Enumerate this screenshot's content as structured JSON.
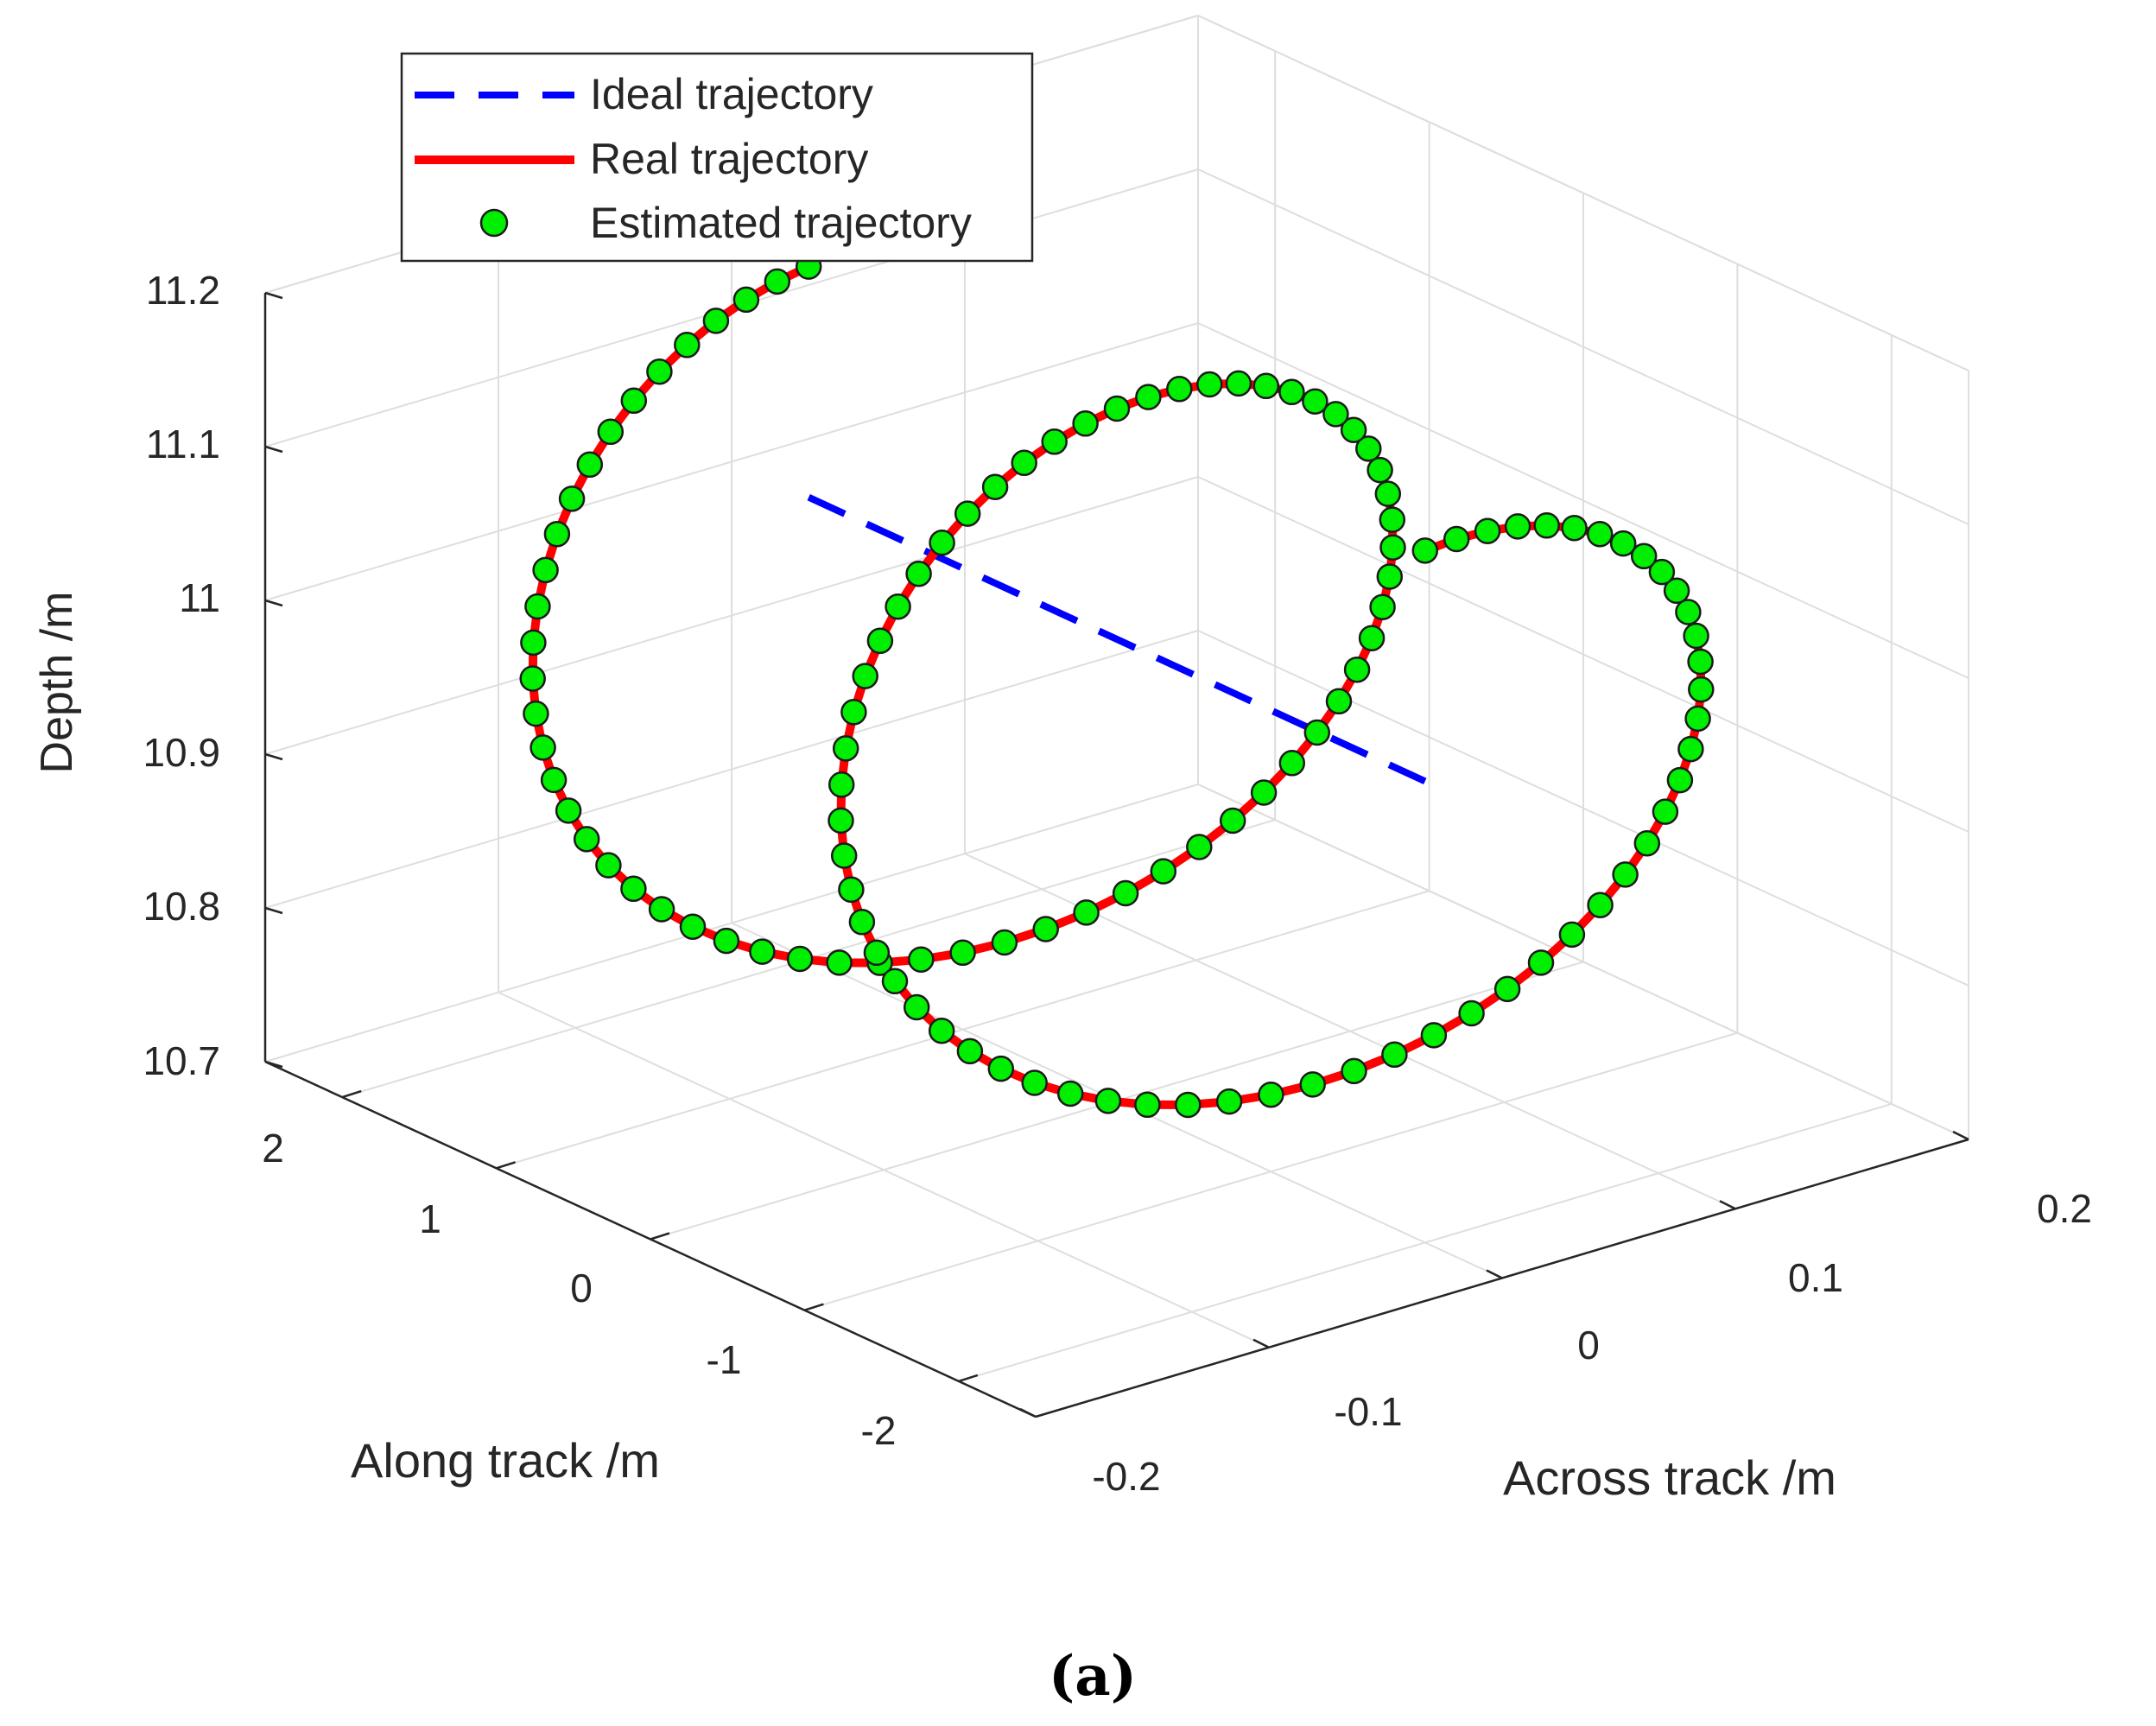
{
  "chart_data": {
    "type": "line3d",
    "title": "",
    "caption": "(a)",
    "xlabel": "Across track /m",
    "ylabel": "Along track /m",
    "zlabel": "Depth /m",
    "xlim": [
      -0.2,
      0.2
    ],
    "ylim": [
      -2.5,
      2.5
    ],
    "zlim": [
      10.7,
      11.2
    ],
    "x_ticks": [
      "-0.2",
      "-0.1",
      "0",
      "0.1",
      "0.2"
    ],
    "y_ticks": [
      "-2",
      "-1",
      "0",
      "1",
      "2"
    ],
    "z_ticks": [
      "10.7",
      "10.8",
      "10.9",
      "11",
      "11.1",
      "11.2"
    ],
    "grid": true,
    "legend_position": "top-left",
    "series": [
      {
        "name": "Ideal trajectory",
        "style": "dashed line",
        "color": "#0000ff",
        "points": [
          {
            "x": 0.0,
            "y": 2.0,
            "z": 11.0
          },
          {
            "x": 0.0,
            "y": -2.0,
            "z": 11.0
          }
        ]
      },
      {
        "name": "Real trajectory",
        "style": "solid line",
        "color": "#ff0000",
        "params": {
          "y_start": 2.0,
          "y_end": -2.0,
          "x_amp": 0.15,
          "z_center": 10.95,
          "z_amp": 0.2,
          "samples": 121
        }
      },
      {
        "name": "Estimated trajectory",
        "style": "markers",
        "color": "#00ee00",
        "edge_color": "#1a1a1a",
        "params": {
          "y_start": 2.0,
          "y_end": -2.0,
          "x_amp": 0.15,
          "z_center": 10.95,
          "z_amp": 0.2,
          "samples": 121
        }
      }
    ]
  },
  "colors": {
    "ideal": "#0000ff",
    "real": "#ff0000",
    "estimated": "#00ee00",
    "marker_edge": "#1a1a1a",
    "grid": "#dedede",
    "axis": "#262626"
  }
}
